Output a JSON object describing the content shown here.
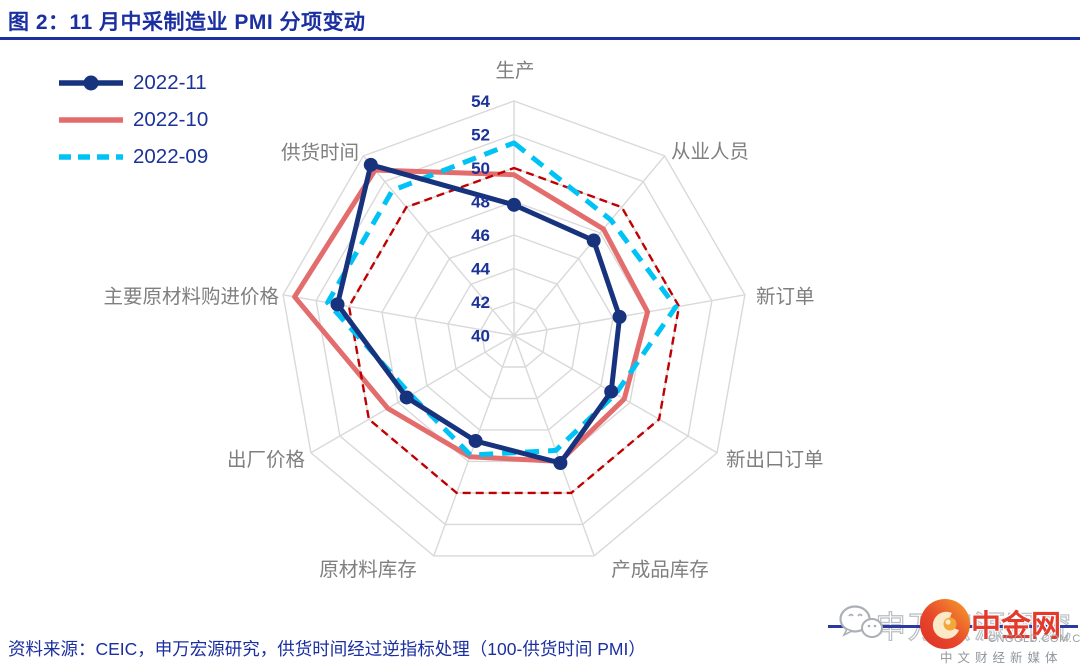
{
  "figure": {
    "title": "图 2：11 月中采制造业 PMI 分项变动",
    "source_note": "资料来源：CEIC，申万宏源研究，供货时间经过逆指标处理（100-供货时间 PMI）"
  },
  "legend": [
    {
      "label": "2022-11",
      "color": "#17337E",
      "style": "solid",
      "marker": true
    },
    {
      "label": "2022-10",
      "color": "#E36C6C",
      "style": "solid",
      "marker": false
    },
    {
      "label": "2022-09",
      "color": "#00C3F5",
      "style": "dashed",
      "marker": false
    }
  ],
  "chart_data": {
    "type": "radar",
    "categories": [
      "生产",
      "从业人员",
      "新订单",
      "新出口订单",
      "产成品库存",
      "原材料库存",
      "出厂价格",
      "主要原材料购进价格",
      "供货时间"
    ],
    "series": [
      {
        "name": "2022-11",
        "color": "#17337E",
        "dash": false,
        "marker": true,
        "values": [
          47.8,
          47.4,
          46.4,
          46.7,
          48.1,
          46.7,
          47.4,
          50.7,
          53.3
        ]
      },
      {
        "name": "2022-10",
        "color": "#E36C6C",
        "dash": false,
        "marker": false,
        "values": [
          49.6,
          48.3,
          48.1,
          47.6,
          48.0,
          47.7,
          48.7,
          53.3,
          52.9
        ]
      },
      {
        "name": "2022-09",
        "color": "#00C3F5",
        "dash": true,
        "marker": false,
        "values": [
          51.5,
          49.0,
          49.8,
          47.0,
          47.3,
          47.6,
          47.1,
          51.3,
          51.3
        ]
      }
    ],
    "reference_line": {
      "value": 50,
      "color": "#C00000",
      "dash": true
    },
    "radial_axis": {
      "min": 40,
      "max": 54,
      "step": 2,
      "tick_labels": [
        "40",
        "42",
        "44",
        "46",
        "48",
        "50",
        "52",
        "54"
      ]
    },
    "grid": true,
    "legend_position": "top-left",
    "grid_color": "#D9D9D9",
    "category_label_color": "#7F7F7F",
    "tick_label_color": "#1B3299"
  },
  "watermark": {
    "brand": "中金网",
    "url": "CNGOLD.COM.CN",
    "tagline": "中文财经新媒体",
    "ghost_text": "申万宏源研究",
    "brand_color": "#E23A2C",
    "logo_colors": {
      "outer_start": "#F6A12B",
      "outer_end": "#DF2E26"
    },
    "icons": [
      "wechat-icon",
      "cngold-logo"
    ]
  }
}
